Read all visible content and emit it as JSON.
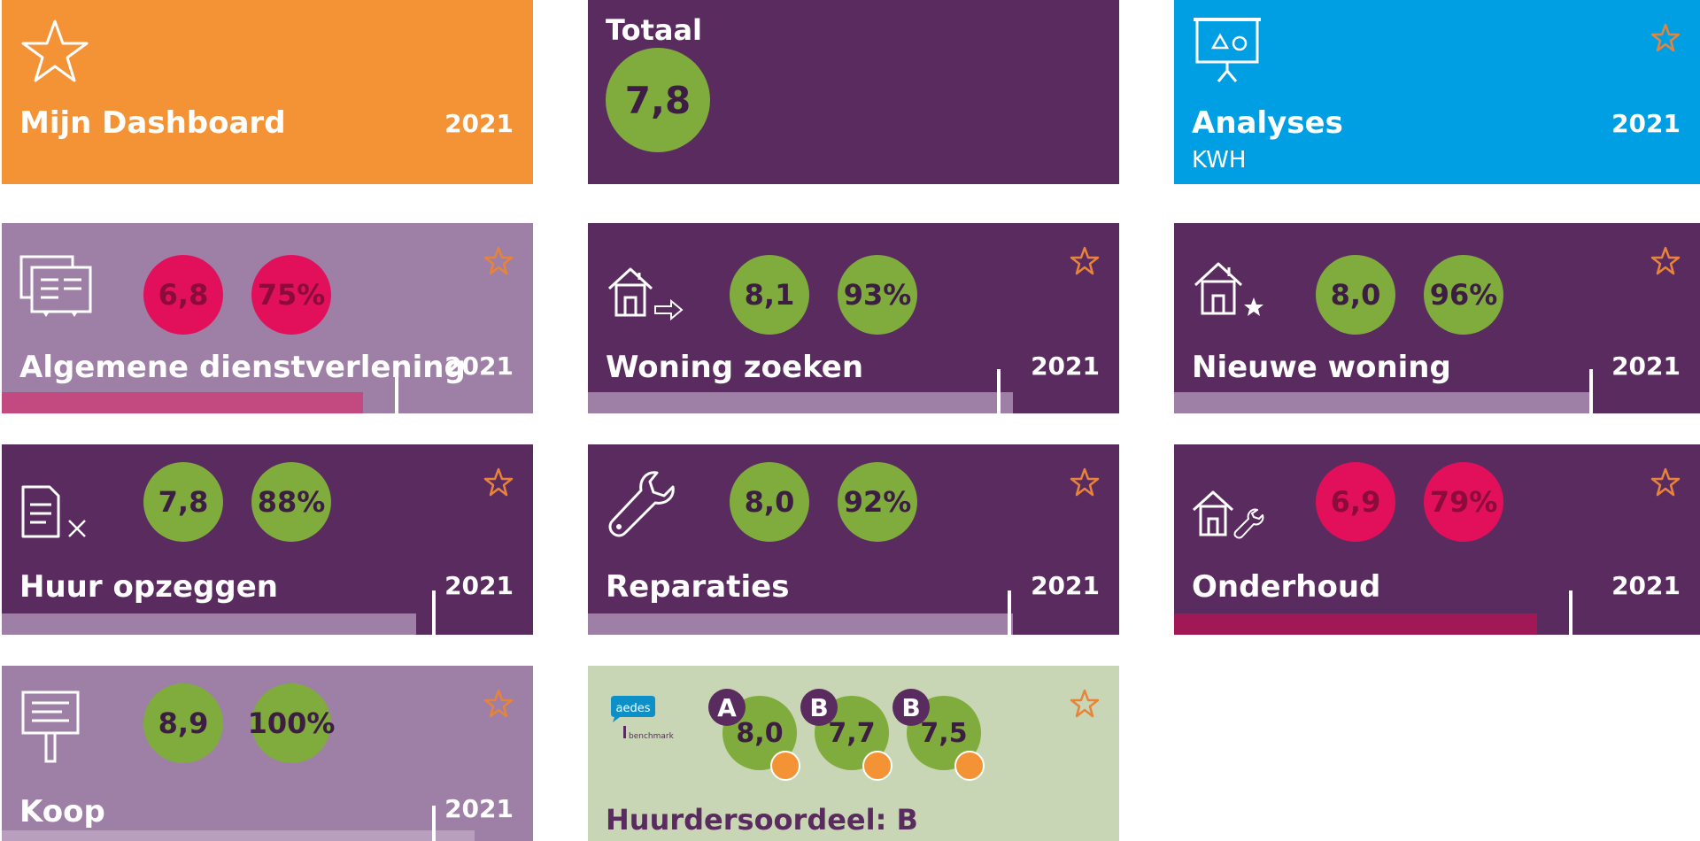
{
  "colors": {
    "orange": "#f39335",
    "purple": "#5a2b5f",
    "lilac": "#9e7fa5",
    "blue": "#009ee3",
    "sage": "#c9d6b5",
    "green": "#7fac3d",
    "red": "#e2105a",
    "star": "#e8833a"
  },
  "dashboard": {
    "title": "Mijn Dashboard",
    "year": "2021",
    "icon": "star-icon"
  },
  "totaal": {
    "title": "Totaal",
    "score": "7,8"
  },
  "analyses": {
    "title": "Analyses",
    "subtitle": "KWH",
    "year": "2021",
    "icon": "presentation-board-icon"
  },
  "tiles": [
    {
      "title": "Algemene dienstverlening",
      "year": "2021",
      "score": "6,8",
      "percent": "75%",
      "status": "red",
      "icon": "documents-icon",
      "bar_fraction": 0.68,
      "marker_fraction": 0.74
    },
    {
      "title": "Woning zoeken",
      "year": "2021",
      "score": "8,1",
      "percent": "93%",
      "status": "green",
      "icon": "house-arrow-icon",
      "bar_fraction": 0.8,
      "marker_fraction": 0.77
    },
    {
      "title": "Nieuwe woning",
      "year": "2021",
      "score": "8,0",
      "percent": "96%",
      "status": "green",
      "icon": "house-star-icon",
      "bar_fraction": 0.79,
      "marker_fraction": 0.79
    },
    {
      "title": "Huur opzeggen",
      "year": "2021",
      "score": "7,8",
      "percent": "88%",
      "status": "green",
      "icon": "document-cancel-icon",
      "bar_fraction": 0.78,
      "marker_fraction": 0.81
    },
    {
      "title": "Reparaties",
      "year": "2021",
      "score": "8,0",
      "percent": "92%",
      "status": "green",
      "icon": "wrench-icon",
      "bar_fraction": 0.8,
      "marker_fraction": 0.79
    },
    {
      "title": "Onderhoud",
      "year": "2021",
      "score": "6,9",
      "percent": "79%",
      "status": "red",
      "icon": "house-wrench-icon",
      "bar_fraction": 0.69,
      "marker_fraction": 0.75
    },
    {
      "title": "Koop",
      "year": "2021",
      "score": "8,9",
      "percent": "100%",
      "status": "green",
      "icon": "sale-sign-icon",
      "bar_fraction": 0.89,
      "marker_fraction": 0.81
    }
  ],
  "benchmark": {
    "title": "Huurdersoordeel: B",
    "logo_text": "aedes",
    "logo_subtext": "benchmark",
    "scores": [
      {
        "letter": "A",
        "score": "8,0"
      },
      {
        "letter": "B",
        "score": "7,7"
      },
      {
        "letter": "B",
        "score": "7,5"
      }
    ]
  }
}
